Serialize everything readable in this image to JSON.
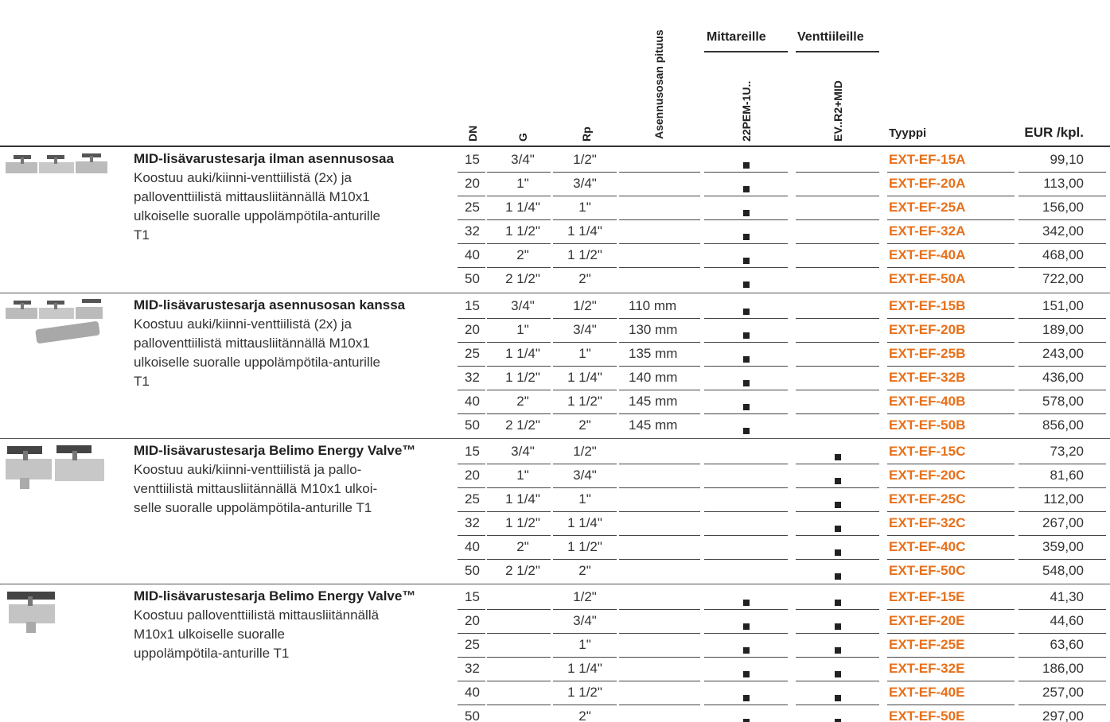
{
  "header": {
    "dn": "DN",
    "g": "G",
    "rp": "Rp",
    "length": "Asennusosan pituus",
    "group_meters": "Mittareille",
    "group_valves": "Venttiileille",
    "meters": "22PEM-1U..",
    "valves": "EV..R2+MID",
    "type": "Tyyppi",
    "price": "EUR /kpl."
  },
  "groups": [
    {
      "title": "MID-lisävarustesarja ilman asennusosaa",
      "lines": [
        "Koostuu auki/kiinni-venttiilistä (2x) ja",
        "palloventtiilistä mittausliitännällä M10x1",
        "ulkoiselle suoralle uppolämpötila-anturille",
        "T1"
      ],
      "rows": [
        {
          "dn": 15,
          "g": "3/4\"",
          "rp": "1/2\"",
          "length": null,
          "meters": true,
          "valves": false,
          "type": "EXT-EF-15A",
          "price": "99,10"
        },
        {
          "dn": 20,
          "g": "1\"",
          "rp": "3/4\"",
          "length": null,
          "meters": true,
          "valves": false,
          "type": "EXT-EF-20A",
          "price": "113,00"
        },
        {
          "dn": 25,
          "g": "1 1/4\"",
          "rp": "1\"",
          "length": null,
          "meters": true,
          "valves": false,
          "type": "EXT-EF-25A",
          "price": "156,00"
        },
        {
          "dn": 32,
          "g": "1 1/2\"",
          "rp": "1 1/4\"",
          "length": null,
          "meters": true,
          "valves": false,
          "type": "EXT-EF-32A",
          "price": "342,00"
        },
        {
          "dn": 40,
          "g": "2\"",
          "rp": "1 1/2\"",
          "length": null,
          "meters": true,
          "valves": false,
          "type": "EXT-EF-40A",
          "price": "468,00"
        },
        {
          "dn": 50,
          "g": "2 1/2\"",
          "rp": "2\"",
          "length": null,
          "meters": true,
          "valves": false,
          "type": "EXT-EF-50A",
          "price": "722,00"
        }
      ]
    },
    {
      "title": "MID-lisävarustesarja asennusosan kanssa",
      "lines": [
        "Koostuu auki/kiinni-venttiilistä (2x) ja",
        "palloventtiilistä mittausliitännällä M10x1",
        "ulkoiselle suoralle uppolämpötila-anturille",
        "T1"
      ],
      "rows": [
        {
          "dn": 15,
          "g": "3/4\"",
          "rp": "1/2\"",
          "length": "110 mm",
          "meters": true,
          "valves": false,
          "type": "EXT-EF-15B",
          "price": "151,00"
        },
        {
          "dn": 20,
          "g": "1\"",
          "rp": "3/4\"",
          "length": "130 mm",
          "meters": true,
          "valves": false,
          "type": "EXT-EF-20B",
          "price": "189,00"
        },
        {
          "dn": 25,
          "g": "1 1/4\"",
          "rp": "1\"",
          "length": "135 mm",
          "meters": true,
          "valves": false,
          "type": "EXT-EF-25B",
          "price": "243,00"
        },
        {
          "dn": 32,
          "g": "1 1/2\"",
          "rp": "1 1/4\"",
          "length": "140 mm",
          "meters": true,
          "valves": false,
          "type": "EXT-EF-32B",
          "price": "436,00"
        },
        {
          "dn": 40,
          "g": "2\"",
          "rp": "1 1/2\"",
          "length": "145 mm",
          "meters": true,
          "valves": false,
          "type": "EXT-EF-40B",
          "price": "578,00"
        },
        {
          "dn": 50,
          "g": "2 1/2\"",
          "rp": "2\"",
          "length": "145 mm",
          "meters": true,
          "valves": false,
          "type": "EXT-EF-50B",
          "price": "856,00"
        }
      ]
    },
    {
      "title": "MID-lisävarustesarja Belimo Energy Valve™",
      "lines": [
        "Koostuu auki/kiinni-venttiilistä ja pallo-",
        "venttiilistä mittausliitännällä M10x1 ulkoi-",
        "selle suoralle uppolämpötila-anturille T1"
      ],
      "rows": [
        {
          "dn": 15,
          "g": "3/4\"",
          "rp": "1/2\"",
          "length": null,
          "meters": false,
          "valves": true,
          "type": "EXT-EF-15C",
          "price": "73,20"
        },
        {
          "dn": 20,
          "g": "1\"",
          "rp": "3/4\"",
          "length": null,
          "meters": false,
          "valves": true,
          "type": "EXT-EF-20C",
          "price": "81,60"
        },
        {
          "dn": 25,
          "g": "1 1/4\"",
          "rp": "1\"",
          "length": null,
          "meters": false,
          "valves": true,
          "type": "EXT-EF-25C",
          "price": "112,00"
        },
        {
          "dn": 32,
          "g": "1 1/2\"",
          "rp": "1 1/4\"",
          "length": null,
          "meters": false,
          "valves": true,
          "type": "EXT-EF-32C",
          "price": "267,00"
        },
        {
          "dn": 40,
          "g": "2\"",
          "rp": "1 1/2\"",
          "length": null,
          "meters": false,
          "valves": true,
          "type": "EXT-EF-40C",
          "price": "359,00"
        },
        {
          "dn": 50,
          "g": "2 1/2\"",
          "rp": "2\"",
          "length": null,
          "meters": false,
          "valves": true,
          "type": "EXT-EF-50C",
          "price": "548,00"
        }
      ]
    },
    {
      "title": "MID-lisävarustesarja Belimo Energy Valve™",
      "lines": [
        "Koostuu palloventtiilistä mittausliitännällä",
        "M10x1 ulkoiselle suoralle",
        "uppolämpötila-anturille T1"
      ],
      "rows": [
        {
          "dn": 15,
          "g": null,
          "rp": "1/2\"",
          "length": null,
          "meters": true,
          "valves": true,
          "type": "EXT-EF-15E",
          "price": "41,30"
        },
        {
          "dn": 20,
          "g": null,
          "rp": "3/4\"",
          "length": null,
          "meters": true,
          "valves": true,
          "type": "EXT-EF-20E",
          "price": "44,60"
        },
        {
          "dn": 25,
          "g": null,
          "rp": "1\"",
          "length": null,
          "meters": true,
          "valves": true,
          "type": "EXT-EF-25E",
          "price": "63,60"
        },
        {
          "dn": 32,
          "g": null,
          "rp": "1 1/4\"",
          "length": null,
          "meters": true,
          "valves": true,
          "type": "EXT-EF-32E",
          "price": "186,00"
        },
        {
          "dn": 40,
          "g": null,
          "rp": "1 1/2\"",
          "length": null,
          "meters": true,
          "valves": true,
          "type": "EXT-EF-40E",
          "price": "257,00"
        },
        {
          "dn": 50,
          "g": null,
          "rp": "2\"",
          "length": null,
          "meters": true,
          "valves": true,
          "type": "EXT-EF-50E",
          "price": "297,00"
        }
      ]
    }
  ]
}
